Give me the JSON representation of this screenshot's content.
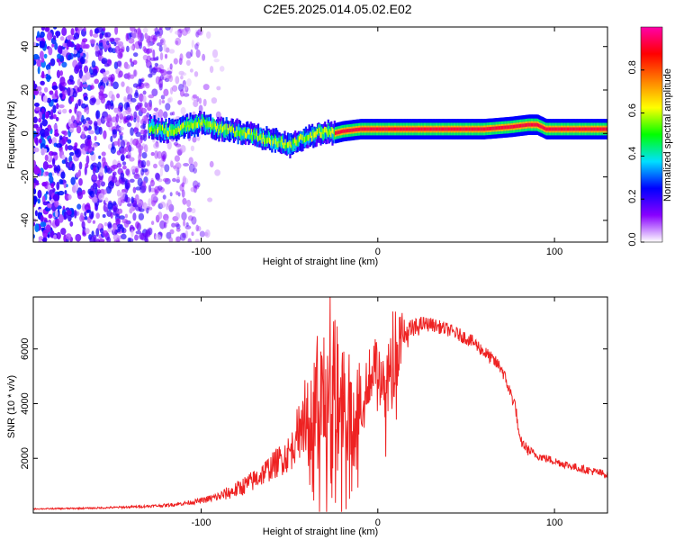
{
  "title": "C2E5.2025.014.05.02.E02",
  "chart_data": [
    {
      "type": "heatmap",
      "title": "",
      "xlabel": "Height of straight line (km)",
      "ylabel": "Frequency (Hz)",
      "xlim": [
        -195,
        130
      ],
      "ylim": [
        -50,
        49
      ],
      "x_ticks": [
        -100,
        0,
        100
      ],
      "y_ticks": [
        -40,
        -20,
        0,
        20,
        40
      ],
      "ridge": {
        "x": [
          -130,
          -120,
          -110,
          -100,
          -90,
          -80,
          -70,
          -60,
          -55,
          -50,
          -45,
          -40,
          -35,
          -30,
          -25,
          -20,
          -10,
          0,
          20,
          40,
          60,
          75,
          85,
          90,
          95,
          110,
          130
        ],
        "freq": [
          3,
          1,
          3,
          5,
          2,
          1,
          -1,
          -3,
          -4,
          -6,
          -3,
          -2,
          0,
          1,
          0,
          1,
          2,
          2,
          2,
          2,
          2,
          3,
          4,
          4,
          2,
          2,
          2
        ]
      },
      "noise_region_x": [
        -195,
        -85
      ],
      "colorbar": {
        "label": "Normalized spectral amplitude",
        "range": [
          0,
          1
        ],
        "ticks": [
          "0.0",
          "0.2",
          "0.4",
          "0.6",
          "0.8"
        ],
        "colors": [
          "#ffffff",
          "#8800ff",
          "#0000ff",
          "#00e0ff",
          "#00ff00",
          "#ffff00",
          "#ff8000",
          "#ff0000",
          "#ff00aa"
        ]
      }
    },
    {
      "type": "line",
      "title": "",
      "xlabel": "Height of straight line (km)",
      "ylabel": "SNR (10 * v/v)",
      "xlim": [
        -195,
        130
      ],
      "ylim": [
        0,
        7900
      ],
      "x_ticks": [
        -100,
        0,
        100
      ],
      "y_ticks": [
        2000,
        4000,
        6000
      ],
      "series": [
        {
          "color": "#ee2222",
          "x": [
            -195,
            -180,
            -160,
            -140,
            -120,
            -110,
            -100,
            -90,
            -80,
            -70,
            -60,
            -50,
            -45,
            -40,
            -35,
            -30,
            -25,
            -20,
            -15,
            -10,
            -5,
            0,
            5,
            10,
            15,
            20,
            25,
            30,
            35,
            40,
            45,
            50,
            55,
            60,
            65,
            70,
            75,
            78,
            80,
            85,
            90,
            100,
            110,
            120,
            130
          ],
          "y": [
            150,
            160,
            180,
            220,
            280,
            350,
            450,
            600,
            850,
            1200,
            1700,
            2200,
            2700,
            3200,
            3700,
            4200,
            4500,
            4400,
            3800,
            3700,
            5000,
            5500,
            4500,
            6000,
            6500,
            6700,
            6900,
            6900,
            6800,
            6700,
            6550,
            6400,
            6200,
            5900,
            5600,
            5300,
            4400,
            3900,
            2700,
            2300,
            2100,
            1900,
            1700,
            1550,
            1400
          ],
          "spike_amplitude": [
            20,
            25,
            30,
            40,
            60,
            70,
            100,
            180,
            300,
            400,
            500,
            700,
            900,
            1500,
            2200,
            2500,
            2600,
            2700,
            1800,
            1500,
            1200,
            1000,
            1500,
            1700,
            600,
            400,
            300,
            250,
            250,
            250,
            250,
            250,
            250,
            250,
            250,
            250,
            250,
            250,
            200,
            200,
            150,
            150,
            150,
            150,
            150
          ]
        }
      ]
    }
  ]
}
